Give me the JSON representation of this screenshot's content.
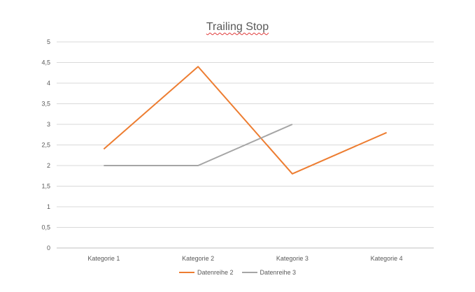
{
  "chart_data": {
    "type": "line",
    "title": "Trailing Stop",
    "categories": [
      "Kategorie 1",
      "Kategorie 2",
      "Kategorie 3",
      "Kategorie 4"
    ],
    "y_ticks": [
      "0",
      "0,5",
      "1",
      "1,5",
      "2",
      "2,5",
      "3",
      "3,5",
      "4",
      "4,5",
      "5"
    ],
    "ylim": [
      0,
      5
    ],
    "grid": true,
    "legend_position": "bottom",
    "series": [
      {
        "name": "Datenreihe 2",
        "color": "#ed7d31",
        "values": [
          2.4,
          4.4,
          1.8,
          2.8
        ]
      },
      {
        "name": "Datenreihe 3",
        "color": "#a5a5a5",
        "values": [
          2.0,
          2.0,
          3.0,
          null
        ]
      }
    ]
  }
}
